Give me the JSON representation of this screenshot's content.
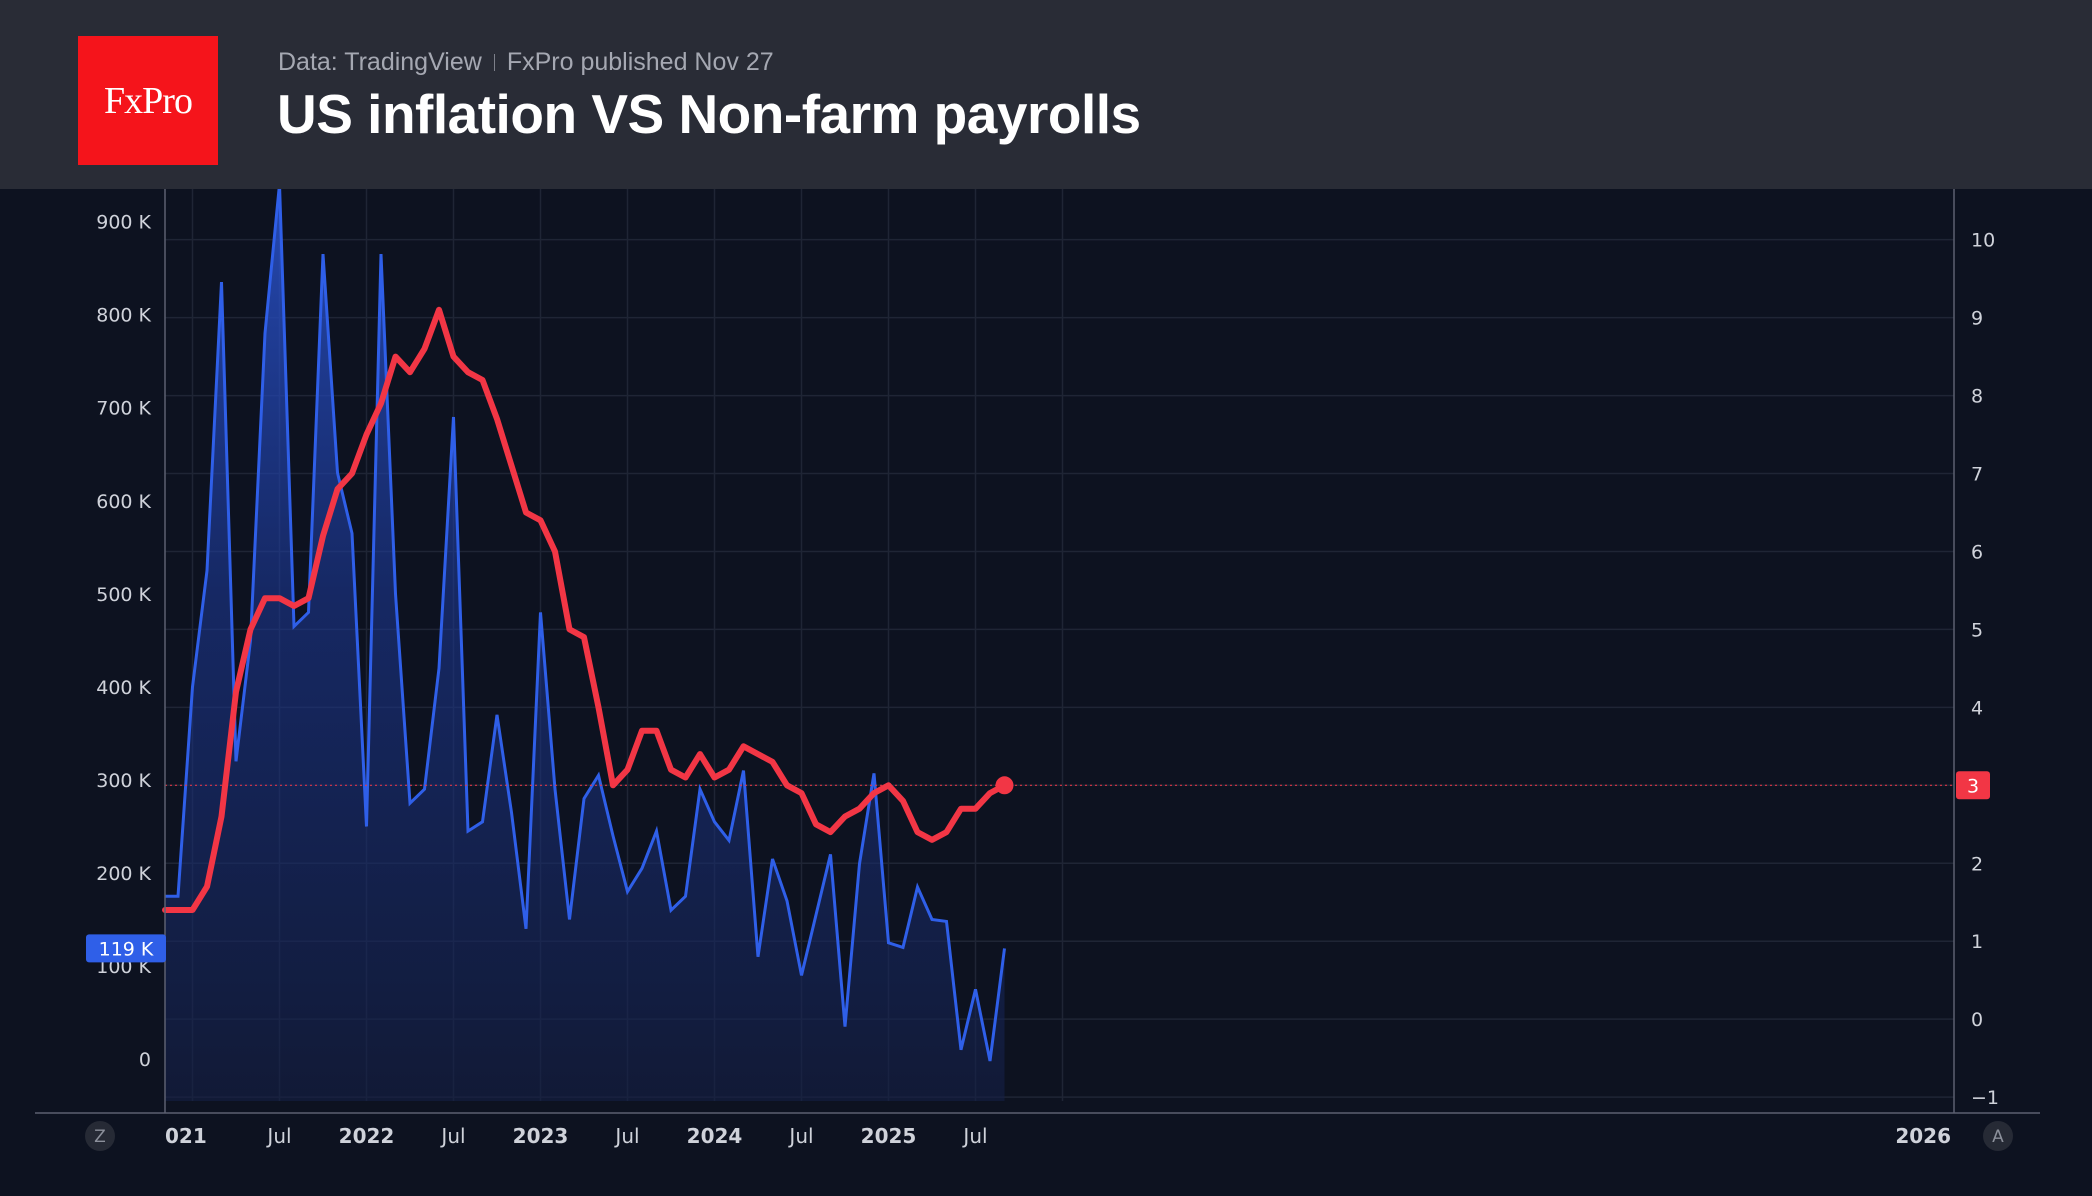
{
  "header": {
    "logo_text": "FxPro",
    "source": "Data: TradingView",
    "published": "FxPro published Nov 27",
    "title": "US inflation VS Non-farm payrolls"
  },
  "controls": {
    "left_button": "Z",
    "right_button": "A"
  },
  "colors": {
    "background": "#0d1220",
    "header": "#292c36",
    "payrolls": "#2f5fe8",
    "inflation": "#f23645",
    "logo": "#f5141b"
  },
  "chart_data": {
    "type": "line",
    "x_start": "2020-12",
    "x_ticks": [
      {
        "label": "021",
        "date": "2021-01",
        "bold": true
      },
      {
        "label": "Jul",
        "date": "2021-07",
        "bold": false
      },
      {
        "label": "2022",
        "date": "2022-01",
        "bold": true
      },
      {
        "label": "Jul",
        "date": "2022-07",
        "bold": false
      },
      {
        "label": "2023",
        "date": "2023-01",
        "bold": true
      },
      {
        "label": "Jul",
        "date": "2023-07",
        "bold": false
      },
      {
        "label": "2024",
        "date": "2024-01",
        "bold": true
      },
      {
        "label": "Jul",
        "date": "2024-07",
        "bold": false
      },
      {
        "label": "2025",
        "date": "2025-01",
        "bold": true
      },
      {
        "label": "Jul",
        "date": "2025-07",
        "bold": false
      },
      {
        "label": "2026",
        "date": "2026-01",
        "bold": true
      }
    ],
    "left_axis": {
      "ticks": [
        "0",
        "100 K",
        "200 K",
        "300 K",
        "400 K",
        "500 K",
        "600 K",
        "700 K",
        "800 K",
        "900 K"
      ],
      "tick_values": [
        0,
        100,
        200,
        300,
        400,
        500,
        600,
        700,
        800,
        900
      ],
      "range": [
        -45,
        935
      ]
    },
    "right_axis": {
      "ticks": [
        "−1",
        "0",
        "1",
        "2",
        "3",
        "4",
        "5",
        "6",
        "7",
        "8",
        "9",
        "10"
      ],
      "tick_values": [
        -1,
        0,
        1,
        2,
        3,
        4,
        5,
        6,
        7,
        8,
        9,
        10
      ],
      "range": [
        -1.05,
        10.65
      ]
    },
    "series": [
      {
        "name": "",
        "axis": "left",
        "unit": "K",
        "style": "area",
        "last_label": "119 K",
        "values": [
          175,
          400,
          525,
          835,
          320,
          450,
          780,
          940,
          465,
          480,
          865,
          630,
          565,
          250,
          865,
          500,
          275,
          290,
          420,
          690,
          245,
          255,
          370,
          265,
          140,
          480,
          290,
          150,
          280,
          305,
          240,
          180,
          205,
          245,
          160,
          175,
          290,
          255,
          235,
          310,
          110,
          215,
          170,
          90,
          155,
          220,
          35,
          210,
          307,
          125,
          120,
          185,
          150,
          148,
          10,
          75,
          -2,
          119
        ]
      },
      {
        "name": "",
        "axis": "right",
        "unit": "%",
        "style": "line",
        "last_label": "3",
        "reference_value": 3.0,
        "values": [
          1.4,
          1.4,
          1.7,
          2.6,
          4.2,
          5.0,
          5.4,
          5.4,
          5.3,
          5.4,
          6.2,
          6.8,
          7.0,
          7.5,
          7.9,
          8.5,
          8.3,
          8.6,
          9.1,
          8.5,
          8.3,
          8.2,
          7.7,
          7.1,
          6.5,
          6.4,
          6.0,
          5.0,
          4.9,
          4.0,
          3.0,
          3.2,
          3.7,
          3.7,
          3.2,
          3.1,
          3.4,
          3.1,
          3.2,
          3.5,
          3.4,
          3.3,
          3.0,
          2.9,
          2.5,
          2.4,
          2.6,
          2.7,
          2.9,
          3.0,
          2.8,
          2.4,
          2.3,
          2.4,
          2.7,
          2.7,
          2.9,
          3.0
        ]
      }
    ]
  }
}
